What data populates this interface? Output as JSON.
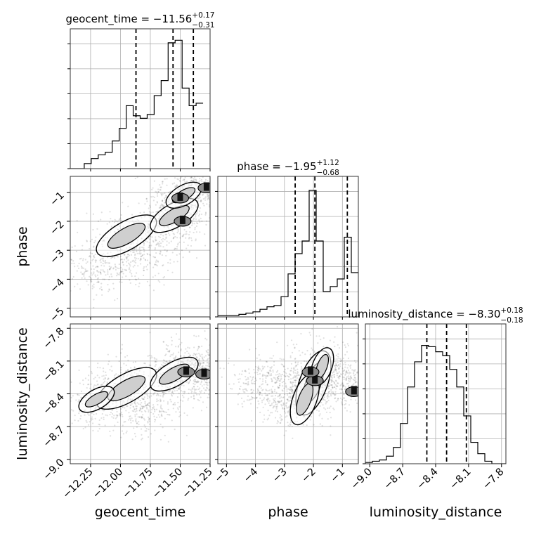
{
  "chart_data": {
    "type": "corner",
    "parameters": [
      "geocent_time",
      "phase",
      "luminosity_distance"
    ],
    "panel_titles": [
      {
        "param": "geocent_time",
        "prefix": "geocent_time = −11.56",
        "sup": "+0.17",
        "sub": "−0.31",
        "median": -11.56,
        "plus": 0.17,
        "minus": 0.31
      },
      {
        "param": "phase",
        "prefix": "phase = −1.95",
        "sup": "+1.12",
        "sub": "−0.68",
        "median": -1.95,
        "plus": 1.12,
        "minus": 0.68
      },
      {
        "param": "luminosity_distance",
        "prefix": "luminosity_distance = −8.30",
        "sup": "+0.18",
        "sub": "−0.18",
        "median": -8.3,
        "plus": 0.18,
        "minus": 0.18
      }
    ],
    "axes": {
      "geocent_time": {
        "range": [
          -12.42,
          -11.25
        ],
        "ticks": [
          -12.25,
          -12.0,
          -11.75,
          -11.5,
          -11.25
        ],
        "tick_labels": [
          "−12.25",
          "−12.00",
          "−11.75",
          "−11.50",
          "−11.25"
        ],
        "label": "geocent_time"
      },
      "phase": {
        "range": [
          -5.3,
          -0.45
        ],
        "ticks": [
          -5,
          -4,
          -3,
          -2,
          -1
        ],
        "tick_labels": [
          "−5",
          "−4",
          "−3",
          "−2",
          "−1"
        ],
        "label": "phase"
      },
      "luminosity_distance": {
        "range": [
          -9.04,
          -7.76
        ],
        "ticks": [
          -9.0,
          -8.7,
          -8.4,
          -8.1,
          -7.8
        ],
        "tick_labels": [
          "−9.0",
          "−8.7",
          "−8.4",
          "−8.1",
          "−7.8"
        ],
        "label": "luminosity_distance"
      }
    },
    "quantile_lines": {
      "geocent_time": [
        -11.87,
        -11.56,
        -11.39
      ],
      "phase": [
        -2.63,
        -1.95,
        -0.83
      ],
      "luminosity_distance": [
        -8.48,
        -8.3,
        -8.12
      ]
    },
    "histograms": {
      "geocent_time": {
        "edges_start": -12.42,
        "bin_width": 0.0585,
        "counts": [
          0,
          0,
          0.04,
          0.08,
          0.11,
          0.13,
          0.22,
          0.32,
          0.5,
          0.42,
          0.4,
          0.43,
          0.58,
          0.7,
          1.0,
          1.02,
          0.64,
          0.5,
          0.52
        ]
      },
      "phase": {
        "edges_start": -5.3,
        "bin_width": 0.2425,
        "counts": [
          0.01,
          0.01,
          0.01,
          0.02,
          0.03,
          0.04,
          0.06,
          0.08,
          0.09,
          0.16,
          0.34,
          0.5,
          0.6,
          1.0,
          0.6,
          0.2,
          0.24,
          0.3,
          0.63,
          0.35
        ]
      },
      "luminosity_distance": {
        "edges_start": -9.04,
        "bin_width": 0.064,
        "counts": [
          0.01,
          0.02,
          0.03,
          0.06,
          0.13,
          0.32,
          0.61,
          0.81,
          0.94,
          0.93,
          0.89,
          0.86,
          0.75,
          0.61,
          0.38,
          0.17,
          0.08,
          0.02,
          0.0,
          0.0
        ]
      }
    },
    "scatter_2d": [
      {
        "x": "geocent_time",
        "y": "phase",
        "centers": [
          [
            -11.95,
            -2.5
          ],
          [
            -11.55,
            -1.8
          ],
          [
            -11.47,
            -1.1
          ],
          [
            -12.2,
            -3.6
          ],
          [
            -11.85,
            -3.3
          ],
          [
            -11.6,
            -2.2
          ],
          [
            -11.38,
            -0.9
          ]
        ],
        "hotspots": [
          [
            -11.48,
            -2.0
          ],
          [
            -11.5,
            -1.2
          ],
          [
            -11.28,
            -0.85
          ]
        ]
      },
      {
        "x": "geocent_time",
        "y": "luminosity_distance",
        "centers": [
          [
            -11.95,
            -8.35
          ],
          [
            -11.55,
            -8.22
          ],
          [
            -12.2,
            -8.45
          ],
          [
            -11.4,
            -8.18
          ],
          [
            -11.8,
            -8.55
          ],
          [
            -11.3,
            -8.2
          ]
        ],
        "hotspots": [
          [
            -11.45,
            -8.2
          ],
          [
            -11.3,
            -8.22
          ]
        ]
      },
      {
        "x": "phase",
        "y": "luminosity_distance",
        "centers": [
          [
            -2.0,
            -8.3
          ],
          [
            -2.3,
            -8.45
          ],
          [
            -1.7,
            -8.15
          ],
          [
            -0.7,
            -8.3
          ],
          [
            -2.9,
            -8.4
          ],
          [
            -3.8,
            -8.3
          ]
        ],
        "hotspots": [
          [
            -1.95,
            -8.28
          ],
          [
            -2.1,
            -8.2
          ],
          [
            -0.6,
            -8.38
          ]
        ]
      }
    ],
    "grid": true
  }
}
